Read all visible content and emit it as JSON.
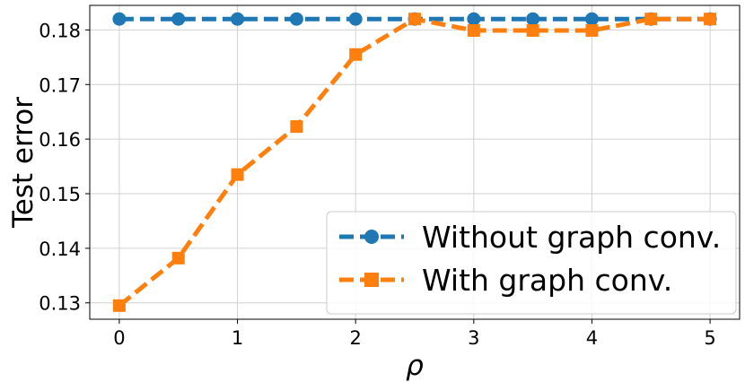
{
  "chart_data": {
    "type": "line",
    "xlabel": "ρ",
    "ylabel": "Test error",
    "xlim": [
      -0.25,
      5.25
    ],
    "ylim": [
      0.127,
      0.1845
    ],
    "x_ticks": [
      0,
      1,
      2,
      3,
      4,
      5
    ],
    "y_ticks": [
      0.13,
      0.14,
      0.15,
      0.16,
      0.17,
      0.18
    ],
    "grid": true,
    "legend_position": "bottom-right",
    "x": [
      0,
      0.5,
      1,
      1.5,
      2,
      2.5,
      3,
      3.5,
      4,
      4.5,
      5
    ],
    "series": [
      {
        "name": "Without graph conv.",
        "color": "#1f77b4",
        "marker": "circle",
        "values": [
          0.182,
          0.182,
          0.182,
          0.182,
          0.182,
          0.182,
          0.182,
          0.182,
          0.182,
          0.182,
          0.182
        ]
      },
      {
        "name": "With graph conv.",
        "color": "#ff7f0e",
        "marker": "square",
        "values": [
          0.1295,
          0.1382,
          0.1535,
          0.1623,
          0.1755,
          0.182,
          0.1799,
          0.1799,
          0.1799,
          0.182,
          0.182
        ]
      }
    ]
  }
}
